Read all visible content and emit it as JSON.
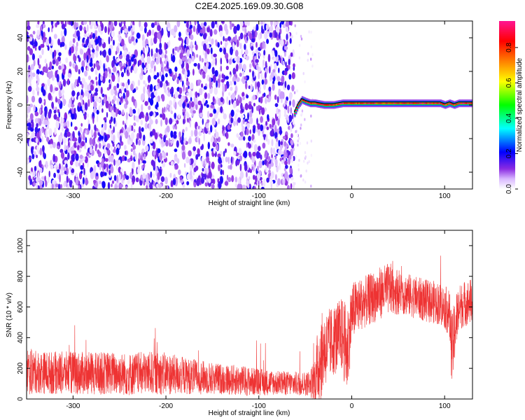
{
  "title": "C2E4.2025.169.09.30.G08",
  "chart_data": [
    {
      "type": "heatmap",
      "xlabel": "Height of straight line (km)",
      "ylabel": "Frequency (Hz)",
      "xlim": [
        -350,
        130
      ],
      "ylim": [
        -50,
        50
      ],
      "xticks": [
        -300,
        -200,
        -100,
        0,
        100
      ],
      "yticks": [
        -40,
        -20,
        0,
        20,
        40
      ],
      "colorbar": {
        "label": "Normalized spectral amplitude",
        "range": [
          0,
          0.95
        ],
        "ticks": [
          0.0,
          0.2,
          0.4,
          0.6,
          0.8
        ],
        "tick_labels": [
          "0.0",
          "0.2",
          "0.4",
          "0.6",
          "0.8"
        ],
        "colors": [
          "#ffffff",
          "#d9b8ff",
          "#8a2be2",
          "#0000ff",
          "#00ffff",
          "#00ff00",
          "#ffff00",
          "#ff8000",
          "#ff0000",
          "#ff1493"
        ]
      },
      "regions": [
        {
          "name": "noise",
          "x": [
            -350,
            -62
          ],
          "y": [
            -50,
            50
          ],
          "amplitude": [
            0.02,
            0.2
          ]
        },
        {
          "name": "sparse-noise",
          "x": [
            -62,
            -42
          ],
          "y": [
            -50,
            50
          ],
          "amplitude": [
            0.01,
            0.08
          ]
        },
        {
          "name": "carrier",
          "x": [
            -62,
            130
          ],
          "y": [
            -3,
            5
          ],
          "amplitude": [
            0.5,
            0.95
          ]
        }
      ],
      "carrier_track": {
        "x": [
          -62,
          -58,
          -54,
          -50,
          -45,
          -40,
          -30,
          -20,
          -10,
          0,
          20,
          40,
          60,
          80,
          95,
          100,
          105,
          110,
          115,
          120,
          130
        ],
        "freq": [
          -5,
          0,
          3,
          2,
          1,
          1,
          0,
          0,
          1,
          1,
          1,
          1,
          1,
          1,
          1,
          0,
          1,
          0,
          1,
          1,
          1
        ]
      }
    },
    {
      "type": "line",
      "xlabel": "Height of straight line (km)",
      "ylabel": "SNR (10 * v/v)",
      "xlim": [
        -350,
        130
      ],
      "ylim": [
        0,
        1100
      ],
      "xticks": [
        -300,
        -200,
        -100,
        0,
        100
      ],
      "yticks": [
        0,
        200,
        400,
        600,
        800,
        1000
      ],
      "series": [
        {
          "color": "#ee3333",
          "x": [
            -350,
            -340,
            -320,
            -300,
            -280,
            -260,
            -240,
            -220,
            -200,
            -180,
            -160,
            -140,
            -120,
            -100,
            -80,
            -60,
            -45,
            -40,
            -35,
            -30,
            -20,
            -10,
            -5,
            0,
            5,
            10,
            20,
            30,
            40,
            50,
            60,
            70,
            80,
            90,
            95,
            100,
            105,
            108,
            112,
            115,
            120,
            130
          ],
          "mean": [
            180,
            175,
            170,
            170,
            165,
            170,
            160,
            170,
            165,
            150,
            140,
            130,
            120,
            110,
            105,
            100,
            100,
            120,
            250,
            320,
            380,
            420,
            300,
            560,
            600,
            620,
            650,
            690,
            720,
            700,
            680,
            660,
            640,
            630,
            620,
            600,
            560,
            300,
            500,
            580,
            620,
            640
          ],
          "spread": [
            160,
            140,
            140,
            140,
            140,
            140,
            140,
            140,
            140,
            120,
            110,
            100,
            100,
            90,
            80,
            80,
            80,
            150,
            300,
            250,
            230,
            250,
            300,
            200,
            180,
            170,
            170,
            170,
            170,
            150,
            140,
            140,
            140,
            140,
            140,
            140,
            160,
            250,
            200,
            160,
            150,
            150
          ]
        }
      ]
    }
  ]
}
